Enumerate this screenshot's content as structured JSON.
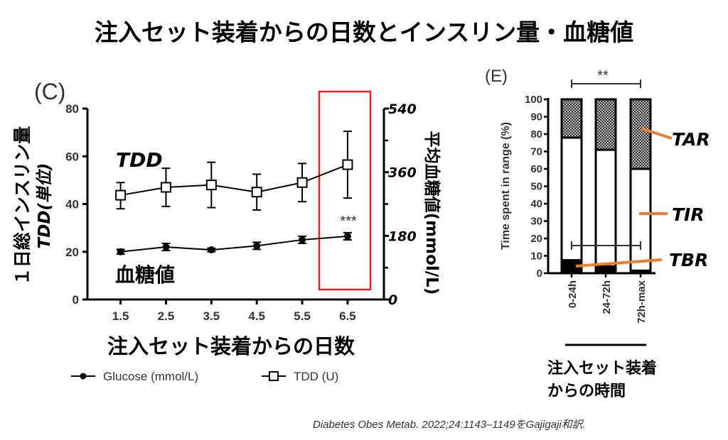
{
  "title": "注入セット装着からの日数とインスリン量・血糖値",
  "citation": "Diabetes Obes Metab. 2022;24:1143–1149をGajigaji和訳.",
  "chart_data": [
    {
      "type": "line",
      "panel_label": "(C)",
      "xlabel": "注入セット装着からの日数",
      "ylabel_left_line1": "１日総インスリン量",
      "ylabel_left_line2": "TDD(単位)",
      "ylabel_right": "平均血糖値(mmol/L)",
      "x": [
        1.5,
        2.5,
        3.5,
        4.5,
        5.5,
        6.5
      ],
      "x_tick_labels": [
        "1.5",
        "2.5",
        "3.5",
        "4.5",
        "5.5",
        "6.5"
      ],
      "xlim": [
        0.77,
        7.3
      ],
      "ylim_left": [
        0,
        80
      ],
      "y_ticks_left": [
        "0",
        "20",
        "40",
        "60",
        "80"
      ],
      "ylim_right": [
        0,
        540
      ],
      "y_ticks_right": [
        "0",
        "180",
        "360",
        "540"
      ],
      "series": [
        {
          "name": "TDD (U)",
          "annotation": "TDD",
          "marker": "open-square",
          "values": [
            43.7,
            47,
            48,
            45,
            49,
            56.5
          ],
          "err_low": [
            38,
            39,
            38.5,
            37.5,
            41,
            42.5
          ],
          "err_high": [
            49,
            55,
            57.5,
            52.5,
            57,
            70.5
          ]
        },
        {
          "name": "Glucose (mmol/L)",
          "annotation": "血糖値",
          "marker": "filled-circle",
          "values": [
            20,
            22,
            20.8,
            22.5,
            25,
            26.5
          ],
          "err_low": [
            19,
            20.5,
            20,
            21,
            23.5,
            25
          ],
          "err_high": [
            21,
            23.5,
            21.5,
            24,
            26.5,
            28
          ]
        }
      ],
      "significance": "***",
      "highlight_x": 6.5,
      "highlight_color": "#e8201f",
      "legend_position": "bottom"
    },
    {
      "type": "bar",
      "stacked": true,
      "panel_label": "(E)",
      "ylabel": "Time spent in range (%)",
      "xlabel": "注入セット装着からの時間",
      "xlabel_line1": "注入セット装着",
      "xlabel_line2": "からの時間",
      "categories": [
        "0-24h",
        "24-72h",
        "72h-max"
      ],
      "ylim": [
        0,
        100
      ],
      "y_ticks": [
        "0",
        "10",
        "20",
        "30",
        "40",
        "50",
        "60",
        "70",
        "80",
        "90",
        "100"
      ],
      "series": [
        {
          "name": "TBR",
          "values": [
            7.5,
            4,
            1.5
          ],
          "fill": "#000000"
        },
        {
          "name": "TIR",
          "values": [
            70.5,
            67,
            58.5
          ],
          "fill": "#ffffff"
        },
        {
          "name": "TAR",
          "values": [
            22,
            29,
            40
          ],
          "fill": "hatched"
        }
      ],
      "significance_top": "**",
      "significance_bottom": "#",
      "annotation_color": "#ee7d31"
    }
  ]
}
